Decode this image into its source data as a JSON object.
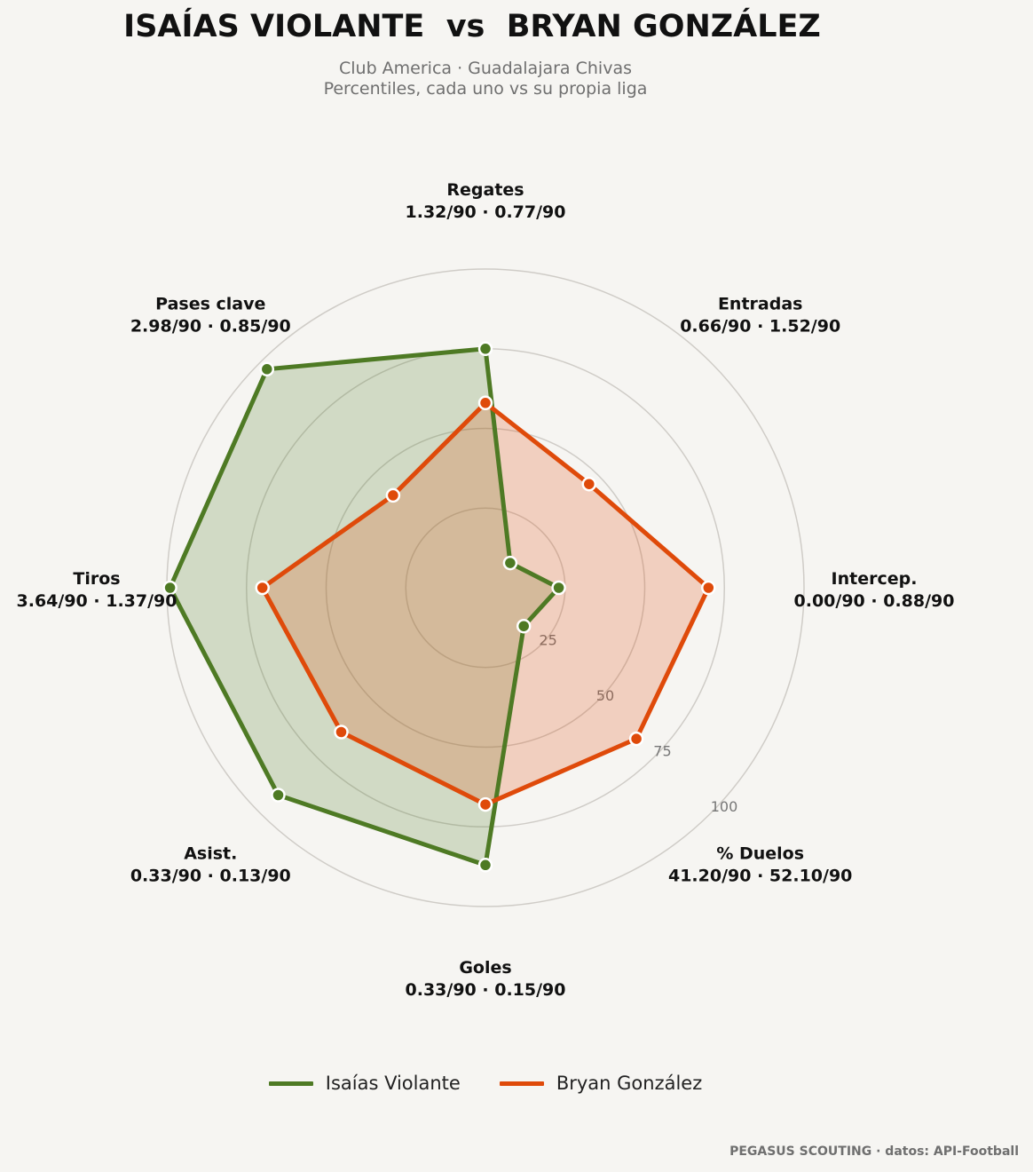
{
  "header": {
    "title": "ISAÍAS VIOLANTE  vs  BRYAN GONZÁLEZ",
    "subtitle_line1": "Club America · Guadalajara Chivas",
    "subtitle_line2": "Percentiles, cada uno vs su propia liga"
  },
  "chart_data": {
    "type": "radar",
    "rlim": [
      0,
      100
    ],
    "rticks": [
      25,
      50,
      75,
      100
    ],
    "categories": [
      "Regates",
      "Entradas",
      "Intercep.",
      "% Duelos",
      "Goles",
      "Asist.",
      "Tiros",
      "Pases clave"
    ],
    "category_values": [
      "1.32/90 · 0.77/90",
      "0.66/90 · 1.52/90",
      "0.00/90 · 0.88/90",
      "41.20/90 · 52.10/90",
      "0.33/90 · 0.15/90",
      "0.33/90 · 0.13/90",
      "3.64/90 · 1.37/90",
      "2.98/90 · 0.85/90"
    ],
    "series": [
      {
        "name": "Isaías Violante",
        "color": "#4e7a24",
        "values": [
          75,
          11,
          23,
          17,
          87,
          92,
          99,
          97
        ]
      },
      {
        "name": "Bryan González",
        "color": "#df4a0a",
        "values": [
          58,
          46,
          70,
          67,
          68,
          64,
          70,
          41
        ]
      }
    ],
    "legend_position": "bottom"
  },
  "footer": {
    "credit": "PEGASUS SCOUTING · datos: API-Football"
  }
}
